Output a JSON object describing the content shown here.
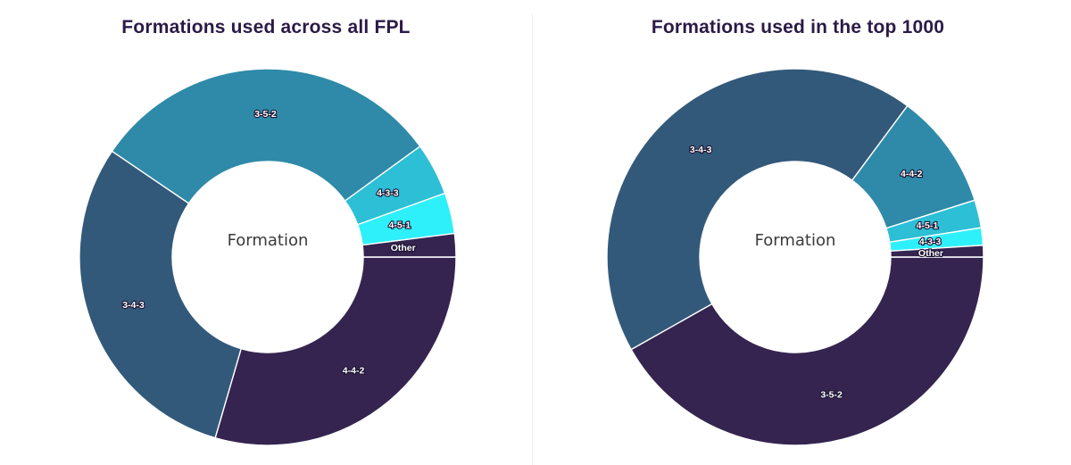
{
  "chart_data": [
    {
      "type": "pie",
      "title": "Formations used across all FPL",
      "center_label": "Formation",
      "slices": [
        {
          "label": "4-4-2",
          "value": 29.5,
          "color": "#352450"
        },
        {
          "label": "3-4-3",
          "value": 30.0,
          "color": "#33597a"
        },
        {
          "label": "3-5-2",
          "value": 30.5,
          "color": "#2e8aa8"
        },
        {
          "label": "4-3-3",
          "value": 4.5,
          "color": "#2cbfd6"
        },
        {
          "label": "4-5-1",
          "value": 3.5,
          "color": "#2ef0fb"
        },
        {
          "label": "Other",
          "value": 2.0,
          "color": "#352450"
        }
      ]
    },
    {
      "type": "pie",
      "title": "Formations used in the top 1000",
      "center_label": "Formation",
      "slices": [
        {
          "label": "3-5-2",
          "value": 42.0,
          "color": "#352450"
        },
        {
          "label": "3-4-3",
          "value": 43.5,
          "color": "#33597a"
        },
        {
          "label": "4-4-2",
          "value": 10.0,
          "color": "#2e8aa8"
        },
        {
          "label": "4-5-1",
          "value": 2.4,
          "color": "#2cbfd6"
        },
        {
          "label": "4-3-3",
          "value": 1.5,
          "color": "#2ef0fb"
        },
        {
          "label": "Other",
          "value": 1.0,
          "color": "#352450"
        }
      ]
    }
  ]
}
